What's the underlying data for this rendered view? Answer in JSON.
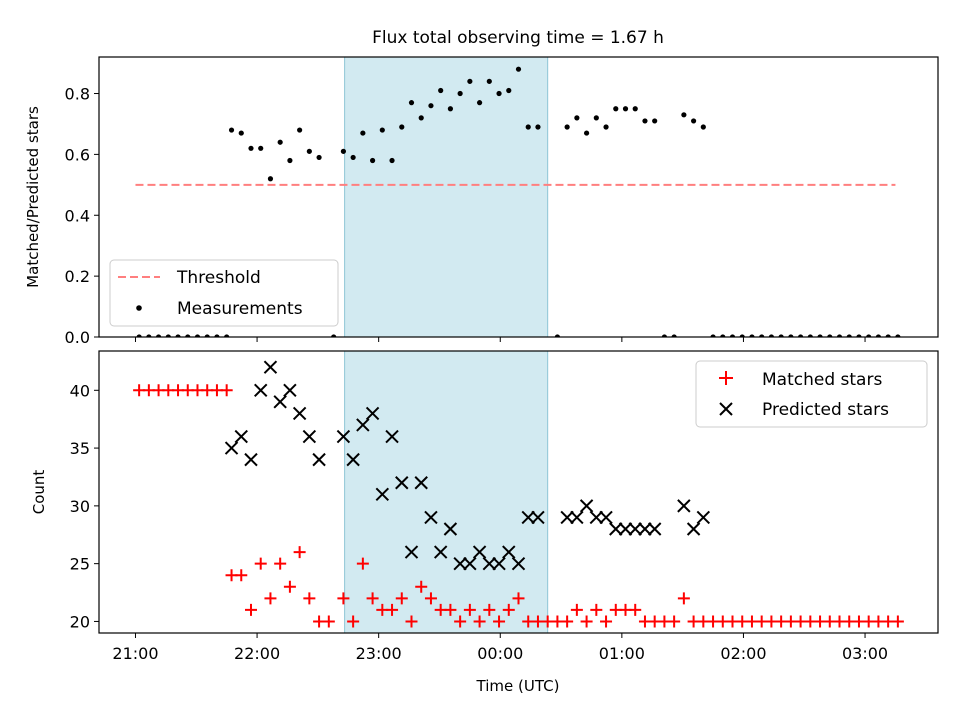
{
  "chart_data": [
    {
      "type": "scatter",
      "title": "Flux total observing time = 1.67 h",
      "ylabel": "Matched/Predicted stars",
      "ylim": [
        0,
        0.92
      ],
      "yticks": [
        0.0,
        0.2,
        0.4,
        0.6,
        0.8
      ],
      "ytick_labels": [
        "0.0",
        "0.2",
        "0.4",
        "0.6",
        "0.8"
      ],
      "xlim": [
        -0.3,
        6.6
      ],
      "shaded_region": [
        1.72,
        3.39
      ],
      "shade_color": "#add8e6",
      "legend_position": "lower left",
      "threshold": {
        "name": "Threshold",
        "value": 0.5,
        "x_range": [
          0.0,
          6.25
        ],
        "color": "#ff7f7f",
        "style": "dashed"
      },
      "series": [
        {
          "name": "Measurements",
          "color": "#000000",
          "marker": "dot",
          "points": [
            [
              0.03,
              0
            ],
            [
              0.11,
              0
            ],
            [
              0.19,
              0
            ],
            [
              0.27,
              0
            ],
            [
              0.35,
              0
            ],
            [
              0.43,
              0
            ],
            [
              0.51,
              0
            ],
            [
              0.59,
              0
            ],
            [
              0.67,
              0
            ],
            [
              0.75,
              0
            ],
            [
              0.79,
              0.68
            ],
            [
              0.87,
              0.67
            ],
            [
              0.95,
              0.62
            ],
            [
              1.03,
              0.62
            ],
            [
              1.11,
              0.52
            ],
            [
              1.19,
              0.64
            ],
            [
              1.27,
              0.58
            ],
            [
              1.35,
              0.68
            ],
            [
              1.43,
              0.61
            ],
            [
              1.51,
              0.59
            ],
            [
              1.63,
              0
            ],
            [
              1.71,
              0.61
            ],
            [
              1.79,
              0.59
            ],
            [
              1.87,
              0.67
            ],
            [
              1.95,
              0.58
            ],
            [
              2.03,
              0.68
            ],
            [
              2.11,
              0.58
            ],
            [
              2.19,
              0.69
            ],
            [
              2.27,
              0.77
            ],
            [
              2.35,
              0.72
            ],
            [
              2.43,
              0.76
            ],
            [
              2.51,
              0.81
            ],
            [
              2.59,
              0.75
            ],
            [
              2.67,
              0.8
            ],
            [
              2.75,
              0.84
            ],
            [
              2.83,
              0.77
            ],
            [
              2.91,
              0.84
            ],
            [
              2.99,
              0.8
            ],
            [
              3.07,
              0.81
            ],
            [
              3.15,
              0.88
            ],
            [
              3.23,
              0.69
            ],
            [
              3.31,
              0.69
            ],
            [
              3.47,
              0
            ],
            [
              3.55,
              0.69
            ],
            [
              3.63,
              0.72
            ],
            [
              3.71,
              0.67
            ],
            [
              3.79,
              0.72
            ],
            [
              3.87,
              0.69
            ],
            [
              3.95,
              0.75
            ],
            [
              4.03,
              0.75
            ],
            [
              4.11,
              0.75
            ],
            [
              4.19,
              0.71
            ],
            [
              4.27,
              0.71
            ],
            [
              4.35,
              0
            ],
            [
              4.43,
              0
            ],
            [
              4.51,
              0.73
            ],
            [
              4.59,
              0.71
            ],
            [
              4.67,
              0.69
            ],
            [
              4.75,
              0
            ],
            [
              4.83,
              0
            ],
            [
              4.91,
              0
            ],
            [
              4.99,
              0
            ],
            [
              5.07,
              0
            ],
            [
              5.15,
              0
            ],
            [
              5.23,
              0
            ],
            [
              5.31,
              0
            ],
            [
              5.39,
              0
            ],
            [
              5.47,
              0
            ],
            [
              5.55,
              0
            ],
            [
              5.63,
              0
            ],
            [
              5.71,
              0
            ],
            [
              5.79,
              0
            ],
            [
              5.87,
              0
            ],
            [
              5.95,
              0
            ],
            [
              6.03,
              0
            ],
            [
              6.11,
              0
            ],
            [
              6.19,
              0
            ],
            [
              6.27,
              0
            ]
          ]
        }
      ]
    },
    {
      "type": "scatter",
      "xlabel": "Time (UTC)",
      "ylabel": "Count",
      "ylim": [
        19.0,
        43.4
      ],
      "yticks": [
        20,
        25,
        30,
        35,
        40
      ],
      "ytick_labels": [
        "20",
        "25",
        "30",
        "35",
        "40"
      ],
      "xlim": [
        -0.3,
        6.6
      ],
      "xticks": [
        0,
        1,
        2,
        3,
        4,
        5,
        6
      ],
      "xtick_labels": [
        "21:00",
        "22:00",
        "23:00",
        "00:00",
        "01:00",
        "02:00",
        "03:00"
      ],
      "shaded_region": [
        1.72,
        3.39
      ],
      "legend_position": "upper right",
      "series": [
        {
          "name": "Matched stars",
          "color": "#ff0000",
          "marker": "plus",
          "points": [
            [
              0.03,
              40
            ],
            [
              0.11,
              40
            ],
            [
              0.19,
              40
            ],
            [
              0.27,
              40
            ],
            [
              0.35,
              40
            ],
            [
              0.43,
              40
            ],
            [
              0.51,
              40
            ],
            [
              0.59,
              40
            ],
            [
              0.67,
              40
            ],
            [
              0.75,
              40
            ],
            [
              0.79,
              24
            ],
            [
              0.87,
              24
            ],
            [
              0.95,
              21
            ],
            [
              1.03,
              25
            ],
            [
              1.11,
              22
            ],
            [
              1.19,
              25
            ],
            [
              1.27,
              23
            ],
            [
              1.35,
              26
            ],
            [
              1.43,
              22
            ],
            [
              1.51,
              20
            ],
            [
              1.59,
              20
            ],
            [
              1.71,
              22
            ],
            [
              1.79,
              20
            ],
            [
              1.87,
              25
            ],
            [
              1.95,
              22
            ],
            [
              2.03,
              21
            ],
            [
              2.11,
              21
            ],
            [
              2.19,
              22
            ],
            [
              2.27,
              20
            ],
            [
              2.35,
              23
            ],
            [
              2.43,
              22
            ],
            [
              2.51,
              21
            ],
            [
              2.59,
              21
            ],
            [
              2.67,
              20
            ],
            [
              2.75,
              21
            ],
            [
              2.83,
              20
            ],
            [
              2.91,
              21
            ],
            [
              2.99,
              20
            ],
            [
              3.07,
              21
            ],
            [
              3.15,
              22
            ],
            [
              3.23,
              20
            ],
            [
              3.31,
              20
            ],
            [
              3.39,
              20
            ],
            [
              3.47,
              20
            ],
            [
              3.55,
              20
            ],
            [
              3.63,
              21
            ],
            [
              3.71,
              20
            ],
            [
              3.79,
              21
            ],
            [
              3.87,
              20
            ],
            [
              3.95,
              21
            ],
            [
              4.03,
              21
            ],
            [
              4.11,
              21
            ],
            [
              4.19,
              20
            ],
            [
              4.27,
              20
            ],
            [
              4.35,
              20
            ],
            [
              4.43,
              20
            ],
            [
              4.51,
              22
            ],
            [
              4.59,
              20
            ],
            [
              4.67,
              20
            ],
            [
              4.75,
              20
            ],
            [
              4.83,
              20
            ],
            [
              4.91,
              20
            ],
            [
              4.99,
              20
            ],
            [
              5.07,
              20
            ],
            [
              5.15,
              20
            ],
            [
              5.23,
              20
            ],
            [
              5.31,
              20
            ],
            [
              5.39,
              20
            ],
            [
              5.47,
              20
            ],
            [
              5.55,
              20
            ],
            [
              5.63,
              20
            ],
            [
              5.71,
              20
            ],
            [
              5.79,
              20
            ],
            [
              5.87,
              20
            ],
            [
              5.95,
              20
            ],
            [
              6.03,
              20
            ],
            [
              6.11,
              20
            ],
            [
              6.19,
              20
            ],
            [
              6.27,
              20
            ]
          ]
        },
        {
          "name": "Predicted stars",
          "color": "#000000",
          "marker": "x",
          "points": [
            [
              0.79,
              35
            ],
            [
              0.87,
              36
            ],
            [
              0.95,
              34
            ],
            [
              1.03,
              40
            ],
            [
              1.11,
              42
            ],
            [
              1.19,
              39
            ],
            [
              1.27,
              40
            ],
            [
              1.35,
              38
            ],
            [
              1.43,
              36
            ],
            [
              1.51,
              34
            ],
            [
              1.71,
              36
            ],
            [
              1.79,
              34
            ],
            [
              1.87,
              37
            ],
            [
              1.95,
              38
            ],
            [
              2.03,
              31
            ],
            [
              2.11,
              36
            ],
            [
              2.19,
              32
            ],
            [
              2.27,
              26
            ],
            [
              2.35,
              32
            ],
            [
              2.43,
              29
            ],
            [
              2.51,
              26
            ],
            [
              2.59,
              28
            ],
            [
              2.67,
              25
            ],
            [
              2.75,
              25
            ],
            [
              2.83,
              26
            ],
            [
              2.91,
              25
            ],
            [
              2.99,
              25
            ],
            [
              3.07,
              26
            ],
            [
              3.15,
              25
            ],
            [
              3.23,
              29
            ],
            [
              3.31,
              29
            ],
            [
              3.55,
              29
            ],
            [
              3.63,
              29
            ],
            [
              3.71,
              30
            ],
            [
              3.79,
              29
            ],
            [
              3.87,
              29
            ],
            [
              3.95,
              28
            ],
            [
              4.03,
              28
            ],
            [
              4.11,
              28
            ],
            [
              4.19,
              28
            ],
            [
              4.27,
              28
            ],
            [
              4.51,
              30
            ],
            [
              4.59,
              28
            ],
            [
              4.67,
              29
            ]
          ]
        }
      ]
    }
  ]
}
